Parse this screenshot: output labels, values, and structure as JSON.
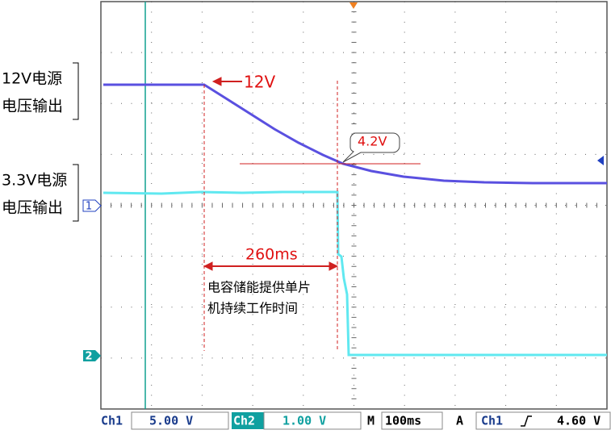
{
  "left_labels": {
    "ch1": [
      "12V电源",
      "电压输出"
    ],
    "ch2": [
      "3.3V电源",
      "电压输出"
    ]
  },
  "annotations": {
    "start_voltage": "12V",
    "threshold_voltage": "4.2V",
    "duration": "260ms",
    "note": [
      "电容储能提供单片",
      "机持续工作时间"
    ]
  },
  "channel_markers": [
    "1",
    "2"
  ],
  "status_bar": {
    "ch1_label": "Ch1",
    "ch1_scale": "5.00 V",
    "ch2_label": "Ch2",
    "ch2_scale": "1.00 V",
    "time_label": "M",
    "time_scale": "100ms",
    "trigger_label": "A",
    "trigger_source": "Ch1",
    "trigger_level": "4.60 V"
  }
}
